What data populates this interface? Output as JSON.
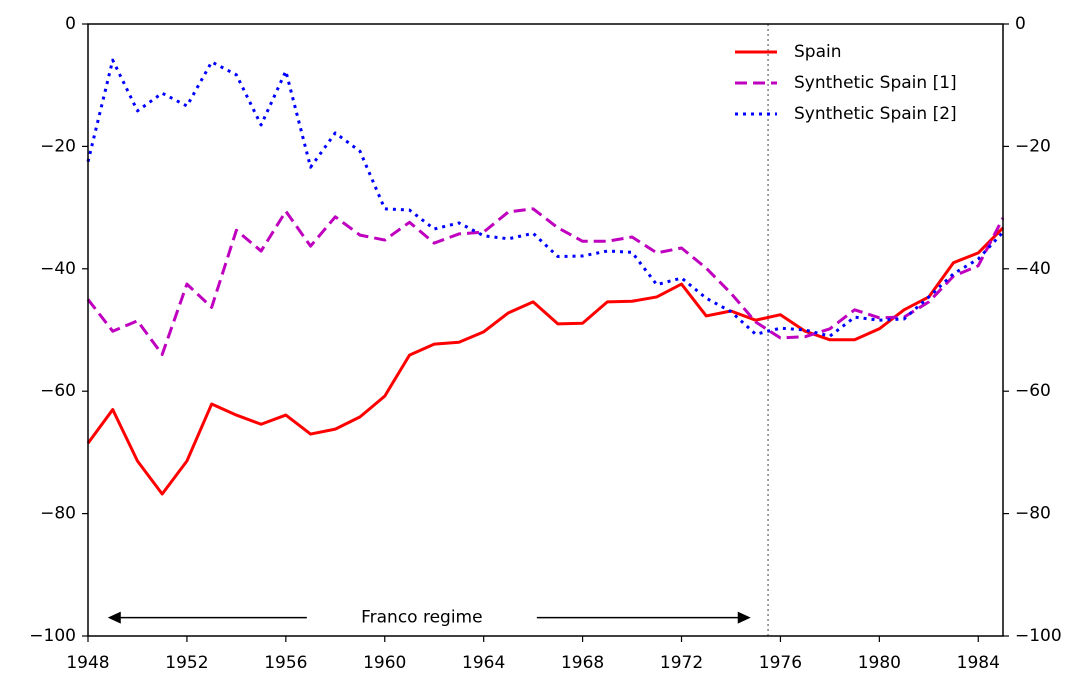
{
  "chart_data": {
    "type": "line",
    "x": [
      1948,
      1949,
      1950,
      1951,
      1952,
      1953,
      1954,
      1955,
      1956,
      1957,
      1958,
      1959,
      1960,
      1961,
      1962,
      1963,
      1964,
      1965,
      1966,
      1967,
      1968,
      1969,
      1970,
      1971,
      1972,
      1973,
      1974,
      1975,
      1976,
      1977,
      1978,
      1979,
      1980,
      1981,
      1982,
      1983,
      1984,
      1985
    ],
    "series": [
      {
        "name": "Spain",
        "color": "#ff0000",
        "style": "solid",
        "values": [
          -68.5,
          -63,
          -71.4,
          -76.8,
          -71.4,
          -62.1,
          -63.9,
          -65.4,
          -63.9,
          -67,
          -66.2,
          -64.2,
          -60.8,
          -54.1,
          -52.3,
          -52,
          -50.3,
          -47.2,
          -45.4,
          -49,
          -48.9,
          -45.4,
          -45.3,
          -44.6,
          -42.5,
          -47.7,
          -46.9,
          -48.4,
          -47.5,
          -50.2,
          -51.6,
          -51.6,
          -49.8,
          -46.7,
          -44.6,
          -39,
          -37.4,
          -33.3
        ]
      },
      {
        "name": "Synthetic Spain [1]",
        "color": "#bf00bf",
        "style": "dashed",
        "values": [
          -45,
          -50.2,
          -48.5,
          -54,
          -42.5,
          -46.3,
          -33.7,
          -37.1,
          -30.6,
          -36.3,
          -31.5,
          -34.5,
          -35.3,
          -32.4,
          -35.8,
          -34.3,
          -34,
          -30.7,
          -30.2,
          -33.3,
          -35.5,
          -35.5,
          -34.8,
          -37.4,
          -36.6,
          -39.9,
          -44,
          -48.7,
          -51.3,
          -51.1,
          -49.8,
          -46.7,
          -48,
          -47.9,
          -45.4,
          -41.2,
          -39.5,
          -31.7
        ]
      },
      {
        "name": "Synthetic Spain [2]",
        "color": "#0000ff",
        "style": "dotted",
        "values": [
          -22.5,
          -5.9,
          -14.2,
          -11.3,
          -13.4,
          -6.2,
          -8.3,
          -16.5,
          -7.7,
          -23.4,
          -17.8,
          -20.8,
          -30.2,
          -30.4,
          -33.5,
          -32.5,
          -34.6,
          -35.1,
          -34.2,
          -38,
          -37.9,
          -37.1,
          -37.3,
          -42.6,
          -41.5,
          -44.8,
          -47,
          -50.7,
          -49.7,
          -50,
          -51,
          -47.9,
          -48.4,
          -48.2,
          -44.6,
          -40.8,
          -38.4,
          -34
        ]
      }
    ],
    "xlim": [
      1948,
      1985
    ],
    "xticks": [
      1948,
      1952,
      1956,
      1960,
      1964,
      1968,
      1972,
      1976,
      1980,
      1984
    ],
    "ylim": [
      -100,
      0
    ],
    "yticks": [
      {
        "value": -100,
        "label": "−100"
      },
      {
        "value": -80,
        "label": "−80"
      },
      {
        "value": -60,
        "label": "−60"
      },
      {
        "value": -40,
        "label": "−40"
      },
      {
        "value": -20,
        "label": "−20"
      },
      0
    ],
    "y2lim": [
      -100,
      0
    ],
    "y2ticks": [
      {
        "value": -100,
        "label": "−100"
      },
      {
        "value": -80,
        "label": "−80"
      },
      {
        "value": -60,
        "label": "−60"
      },
      {
        "value": -40,
        "label": "−40"
      },
      {
        "value": -20,
        "label": "−20"
      },
      0
    ],
    "vline": 1975.5,
    "annotation": {
      "text": "Franco regime",
      "x": 1961.5,
      "y": -97,
      "arrow_from": 1948.8,
      "arrow_to": 1974.8
    },
    "legend": "upper right"
  }
}
